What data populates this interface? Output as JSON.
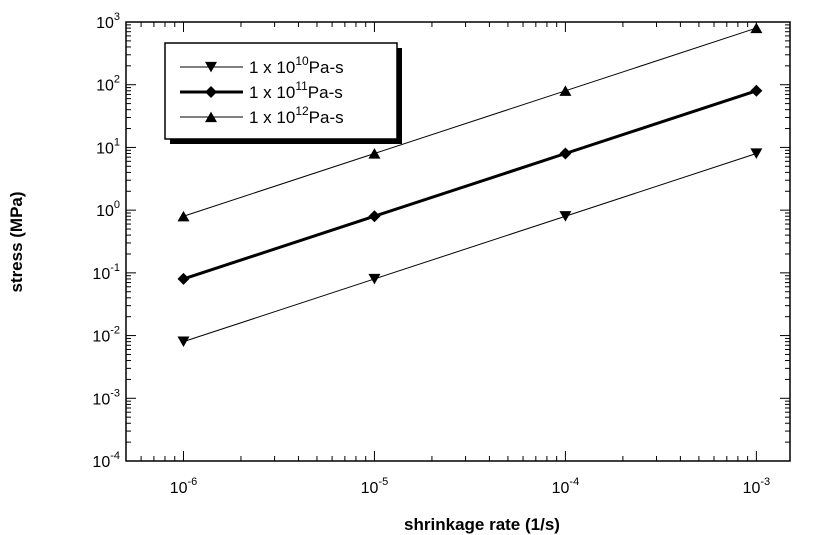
{
  "chart_data": {
    "type": "line",
    "title": "",
    "xlabel": "shrinkage rate (1/s)",
    "ylabel": "stress (MPa)",
    "xscale": "log",
    "yscale": "log",
    "xlim": [
      5e-07,
      0.0015
    ],
    "ylim": [
      0.0001,
      1000
    ],
    "x_ticks": [
      {
        "base": "10",
        "exp": "-6"
      },
      {
        "base": "10",
        "exp": "-5"
      },
      {
        "base": "10",
        "exp": "-4"
      },
      {
        "base": "10",
        "exp": "-3"
      }
    ],
    "y_ticks": [
      {
        "base": "10",
        "exp": "-4"
      },
      {
        "base": "10",
        "exp": "-3"
      },
      {
        "base": "10",
        "exp": "-2"
      },
      {
        "base": "10",
        "exp": "-1"
      },
      {
        "base": "10",
        "exp": "0"
      },
      {
        "base": "10",
        "exp": "1"
      },
      {
        "base": "10",
        "exp": "2"
      },
      {
        "base": "10",
        "exp": "3"
      }
    ],
    "grid": false,
    "legend_position": "top-left",
    "x": [
      1e-06,
      1e-05,
      0.0001,
      0.001
    ],
    "series": [
      {
        "label_prefix": "1 x 10",
        "label_exp": "10",
        "label_suffix": "Pa-s",
        "marker": "triangle-down",
        "line": "thin",
        "values": [
          0.008,
          0.08,
          0.8,
          8
        ]
      },
      {
        "label_prefix": "1 x 10",
        "label_exp": "11",
        "label_suffix": "Pa-s",
        "marker": "diamond",
        "line": "thick",
        "values": [
          0.08,
          0.8,
          8,
          80
        ]
      },
      {
        "label_prefix": "1 x 10",
        "label_exp": "12",
        "label_suffix": "Pa-s",
        "marker": "triangle-up",
        "line": "thin",
        "values": [
          0.8,
          8,
          80,
          800
        ]
      }
    ],
    "colors": {
      "line": "#000000",
      "background": "#ffffff"
    }
  }
}
